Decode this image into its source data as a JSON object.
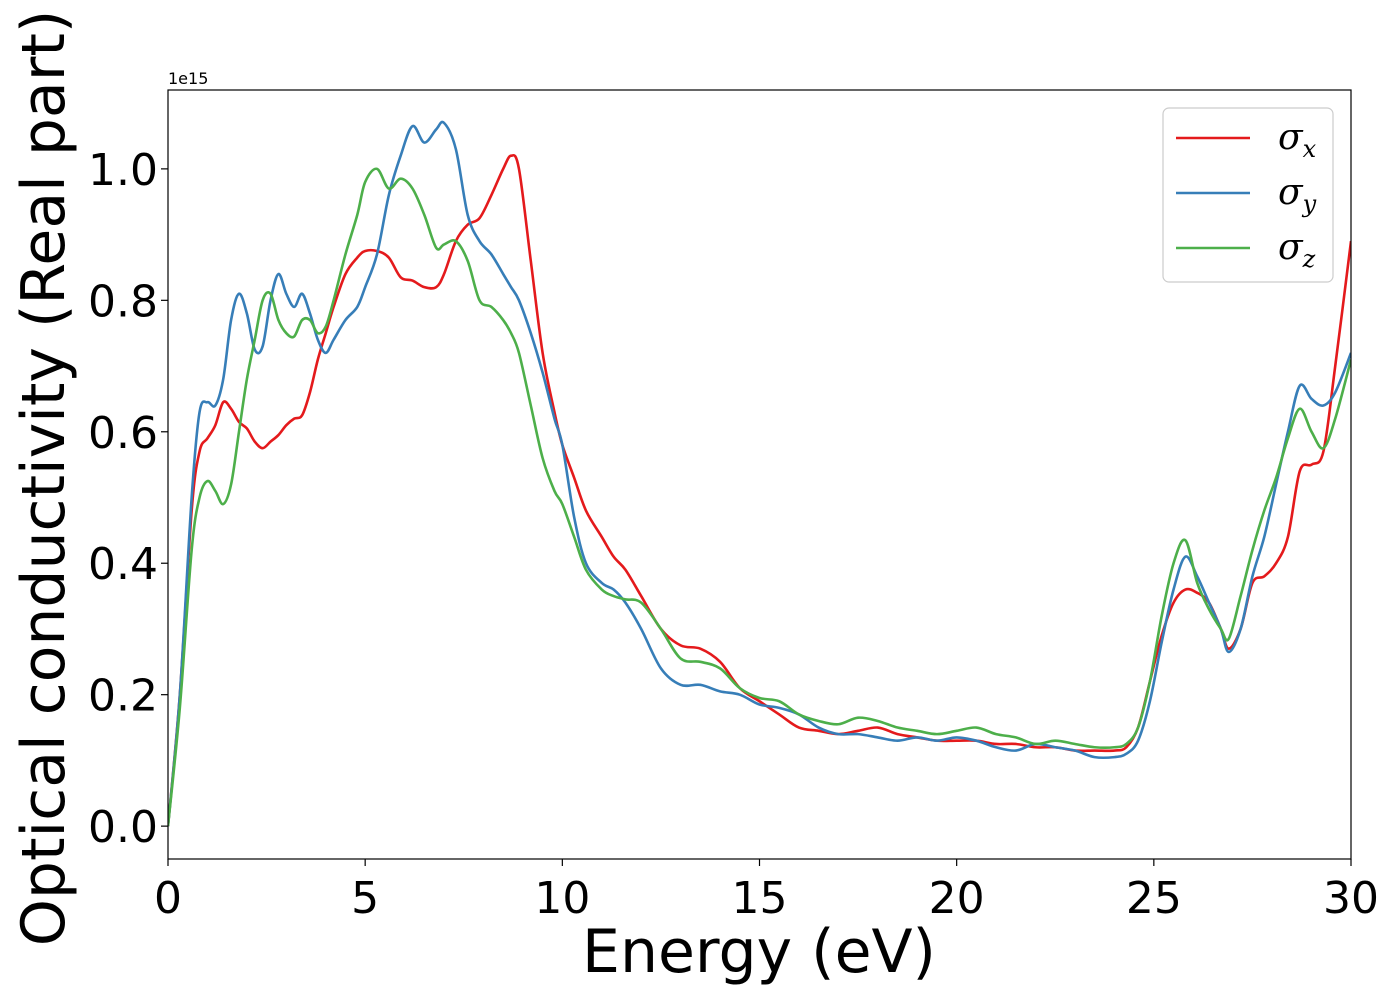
{
  "chart_data": {
    "type": "line",
    "title": "",
    "xlabel": "Energy (eV)",
    "ylabel": "Optical conductivity (Real part)",
    "y_offset_label": "1e15",
    "xlim": [
      0,
      30
    ],
    "ylim": [
      -0.05,
      1.12
    ],
    "xticks": [
      0,
      5,
      10,
      15,
      20,
      25,
      30
    ],
    "xtick_labels": [
      "0",
      "5",
      "10",
      "15",
      "20",
      "25",
      "30"
    ],
    "yticks": [
      0.0,
      0.2,
      0.4,
      0.6,
      0.8,
      1.0
    ],
    "ytick_labels": [
      "0.0",
      "0.2",
      "0.4",
      "0.6",
      "0.8",
      "1.0"
    ],
    "grid": false,
    "legend_position": "top-right",
    "series": [
      {
        "name": "σx",
        "name_base": "σ",
        "name_sub": "x",
        "color": "#e41a1c",
        "x": [
          0,
          0.3,
          0.6,
          0.8,
          1.0,
          1.2,
          1.4,
          1.6,
          1.8,
          2.0,
          2.2,
          2.4,
          2.6,
          2.8,
          3.0,
          3.2,
          3.4,
          3.6,
          3.8,
          4.0,
          4.2,
          4.5,
          4.8,
          5.0,
          5.3,
          5.6,
          5.9,
          6.2,
          6.5,
          6.8,
          7.0,
          7.3,
          7.6,
          7.9,
          8.2,
          8.5,
          8.7,
          8.9,
          9.2,
          9.5,
          9.8,
          10.0,
          10.3,
          10.6,
          11.0,
          11.3,
          11.6,
          12.0,
          12.5,
          13.0,
          13.5,
          14.0,
          14.5,
          15.0,
          15.5,
          16.0,
          16.5,
          17.0,
          17.5,
          18.0,
          18.5,
          19.0,
          19.5,
          20.0,
          20.5,
          21.0,
          21.5,
          22.0,
          22.5,
          23.0,
          23.5,
          24.0,
          24.3,
          24.6,
          24.9,
          25.2,
          25.5,
          25.8,
          26.1,
          26.4,
          26.7,
          26.9,
          27.2,
          27.5,
          27.8,
          28.1,
          28.4,
          28.7,
          29.0,
          29.3,
          29.6,
          30.0
        ],
        "y": [
          0.0,
          0.2,
          0.48,
          0.57,
          0.59,
          0.61,
          0.645,
          0.635,
          0.615,
          0.605,
          0.585,
          0.575,
          0.585,
          0.595,
          0.61,
          0.62,
          0.625,
          0.66,
          0.71,
          0.75,
          0.79,
          0.84,
          0.865,
          0.875,
          0.875,
          0.865,
          0.835,
          0.83,
          0.82,
          0.82,
          0.84,
          0.89,
          0.915,
          0.925,
          0.96,
          1.0,
          1.02,
          1.0,
          0.86,
          0.72,
          0.63,
          0.58,
          0.53,
          0.48,
          0.44,
          0.41,
          0.39,
          0.35,
          0.3,
          0.275,
          0.27,
          0.25,
          0.21,
          0.19,
          0.17,
          0.15,
          0.145,
          0.14,
          0.145,
          0.15,
          0.14,
          0.135,
          0.13,
          0.13,
          0.13,
          0.125,
          0.125,
          0.12,
          0.12,
          0.115,
          0.115,
          0.115,
          0.12,
          0.15,
          0.22,
          0.29,
          0.34,
          0.36,
          0.355,
          0.34,
          0.3,
          0.27,
          0.3,
          0.37,
          0.38,
          0.4,
          0.44,
          0.54,
          0.55,
          0.57,
          0.7,
          0.89
        ]
      },
      {
        "name": "σy",
        "name_base": "σ",
        "name_sub": "y",
        "color": "#377eb8",
        "x": [
          0,
          0.3,
          0.6,
          0.8,
          1.0,
          1.2,
          1.4,
          1.6,
          1.8,
          2.0,
          2.2,
          2.4,
          2.6,
          2.8,
          3.0,
          3.2,
          3.4,
          3.6,
          3.8,
          4.0,
          4.2,
          4.5,
          4.8,
          5.0,
          5.3,
          5.6,
          5.9,
          6.2,
          6.5,
          6.8,
          7.0,
          7.3,
          7.6,
          7.9,
          8.2,
          8.5,
          8.7,
          8.9,
          9.2,
          9.5,
          9.8,
          10.0,
          10.3,
          10.6,
          11.0,
          11.3,
          11.6,
          12.0,
          12.5,
          13.0,
          13.5,
          14.0,
          14.5,
          15.0,
          15.5,
          16.0,
          16.5,
          17.0,
          17.5,
          18.0,
          18.5,
          19.0,
          19.5,
          20.0,
          20.5,
          21.0,
          21.5,
          22.0,
          22.5,
          23.0,
          23.5,
          24.0,
          24.3,
          24.6,
          24.9,
          25.2,
          25.5,
          25.8,
          26.1,
          26.4,
          26.7,
          26.9,
          27.2,
          27.5,
          27.8,
          28.1,
          28.4,
          28.7,
          29.0,
          29.3,
          29.6,
          30.0
        ],
        "y": [
          0.0,
          0.2,
          0.5,
          0.63,
          0.645,
          0.64,
          0.68,
          0.77,
          0.81,
          0.78,
          0.725,
          0.73,
          0.8,
          0.84,
          0.81,
          0.79,
          0.81,
          0.78,
          0.74,
          0.72,
          0.74,
          0.77,
          0.79,
          0.82,
          0.87,
          0.96,
          1.02,
          1.065,
          1.04,
          1.06,
          1.07,
          1.03,
          0.93,
          0.89,
          0.87,
          0.84,
          0.82,
          0.8,
          0.75,
          0.69,
          0.62,
          0.58,
          0.47,
          0.4,
          0.37,
          0.36,
          0.34,
          0.3,
          0.24,
          0.215,
          0.215,
          0.205,
          0.2,
          0.185,
          0.18,
          0.17,
          0.15,
          0.14,
          0.14,
          0.135,
          0.13,
          0.135,
          0.13,
          0.135,
          0.13,
          0.12,
          0.115,
          0.125,
          0.12,
          0.115,
          0.105,
          0.105,
          0.11,
          0.13,
          0.19,
          0.28,
          0.36,
          0.41,
          0.38,
          0.34,
          0.3,
          0.265,
          0.3,
          0.38,
          0.44,
          0.52,
          0.6,
          0.67,
          0.65,
          0.64,
          0.66,
          0.72
        ]
      },
      {
        "name": "σz",
        "name_base": "σ",
        "name_sub": "z",
        "color": "#4daf4a",
        "x": [
          0,
          0.3,
          0.6,
          0.8,
          1.0,
          1.2,
          1.4,
          1.6,
          1.8,
          2.0,
          2.2,
          2.4,
          2.6,
          2.8,
          3.0,
          3.2,
          3.4,
          3.6,
          3.8,
          4.0,
          4.2,
          4.5,
          4.8,
          5.0,
          5.3,
          5.6,
          5.9,
          6.2,
          6.5,
          6.8,
          7.0,
          7.3,
          7.6,
          7.9,
          8.2,
          8.5,
          8.7,
          8.9,
          9.2,
          9.5,
          9.8,
          10.0,
          10.3,
          10.6,
          11.0,
          11.3,
          11.6,
          12.0,
          12.5,
          13.0,
          13.5,
          14.0,
          14.5,
          15.0,
          15.5,
          16.0,
          16.5,
          17.0,
          17.5,
          18.0,
          18.5,
          19.0,
          19.5,
          20.0,
          20.5,
          21.0,
          21.5,
          22.0,
          22.5,
          23.0,
          23.5,
          24.0,
          24.3,
          24.6,
          24.9,
          25.2,
          25.5,
          25.8,
          26.1,
          26.4,
          26.7,
          26.9,
          27.2,
          27.5,
          27.8,
          28.1,
          28.4,
          28.7,
          29.0,
          29.3,
          29.6,
          30.0
        ],
        "y": [
          0.0,
          0.18,
          0.42,
          0.5,
          0.525,
          0.51,
          0.49,
          0.52,
          0.6,
          0.68,
          0.74,
          0.8,
          0.81,
          0.77,
          0.75,
          0.745,
          0.77,
          0.77,
          0.75,
          0.76,
          0.8,
          0.87,
          0.93,
          0.98,
          1.0,
          0.97,
          0.985,
          0.97,
          0.93,
          0.88,
          0.885,
          0.89,
          0.86,
          0.8,
          0.79,
          0.77,
          0.75,
          0.72,
          0.64,
          0.56,
          0.51,
          0.49,
          0.44,
          0.39,
          0.36,
          0.35,
          0.345,
          0.34,
          0.3,
          0.255,
          0.25,
          0.24,
          0.21,
          0.195,
          0.19,
          0.17,
          0.16,
          0.155,
          0.165,
          0.16,
          0.15,
          0.145,
          0.14,
          0.145,
          0.15,
          0.14,
          0.135,
          0.125,
          0.13,
          0.125,
          0.12,
          0.12,
          0.125,
          0.15,
          0.22,
          0.32,
          0.4,
          0.435,
          0.37,
          0.33,
          0.3,
          0.285,
          0.35,
          0.42,
          0.48,
          0.53,
          0.59,
          0.635,
          0.6,
          0.575,
          0.62,
          0.71
        ]
      }
    ]
  }
}
